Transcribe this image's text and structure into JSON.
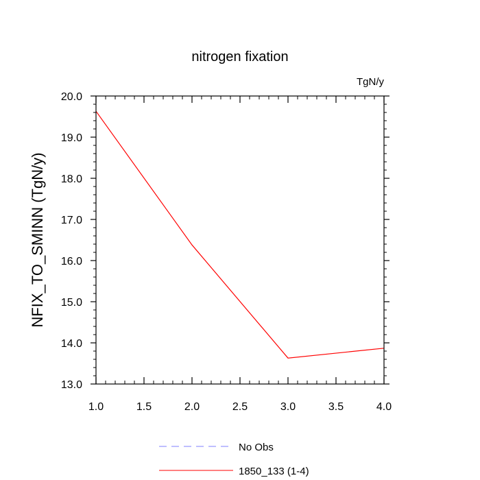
{
  "chart_data": {
    "type": "line",
    "title": "nitrogen fixation",
    "units": "TgN/y",
    "xlabel": "",
    "ylabel": "NFIX_TO_SMINN  (TgN/y)",
    "xlim": [
      1.0,
      4.0
    ],
    "ylim": [
      13.0,
      20.0
    ],
    "x_ticks": [
      "1.0",
      "1.5",
      "2.0",
      "2.5",
      "3.0",
      "3.5",
      "4.0"
    ],
    "y_ticks": [
      "13.0",
      "14.0",
      "15.0",
      "16.0",
      "17.0",
      "18.0",
      "19.0",
      "20.0"
    ],
    "series": [
      {
        "name": "1850_133 (1-4)",
        "color": "#ff0000",
        "style": "solid",
        "x": [
          1.0,
          2.0,
          3.0,
          4.0
        ],
        "y": [
          19.63,
          16.38,
          13.63,
          13.87
        ]
      }
    ],
    "legend": [
      {
        "label": "No Obs",
        "color": "#7f7fff",
        "style": "dashed"
      },
      {
        "label": "1850_133 (1-4)",
        "color": "#ff0000",
        "style": "solid"
      }
    ],
    "legend_position": "bottom"
  }
}
